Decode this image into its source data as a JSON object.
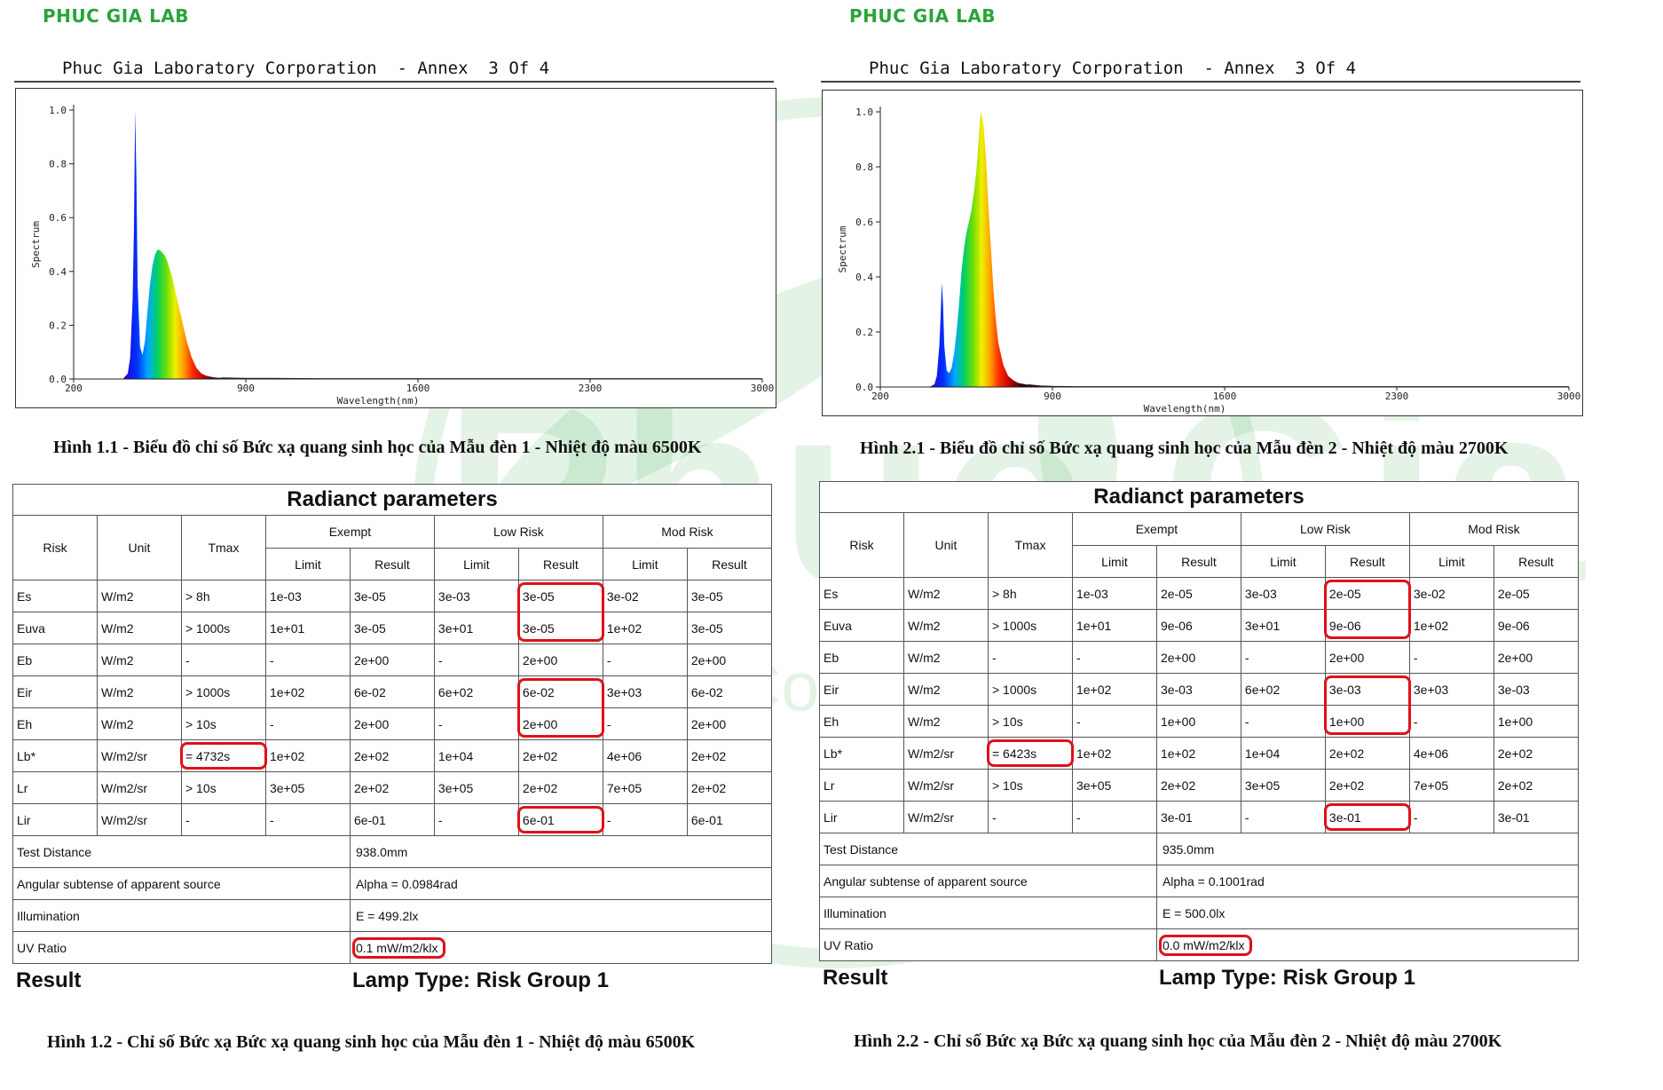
{
  "panels": [
    {
      "brand": "PHUC GIA LAB",
      "report_title": "Phuc Gia Laboratory Corporation  - Annex  3 Of 4",
      "chart_caption": "Hình 1.1 - Biểu đồ chỉ số Bức xạ quang sinh học của Mẫu đèn 1 - Nhiệt độ màu 6500K",
      "table_title": "Radianct parameters",
      "headers": {
        "risk": "Risk",
        "unit": "Unit",
        "tmax": "Tmax",
        "exempt": "Exempt",
        "low_risk": "Low Risk",
        "mod_risk": "Mod Risk",
        "limit": "Limit",
        "result": "Result"
      },
      "rows": [
        {
          "risk": "Es",
          "unit": "W/m2",
          "tmax": "> 8h",
          "ex_limit": "1e-03",
          "ex_result": "3e-05",
          "lr_limit": "3e-03",
          "lr_result": "3e-05",
          "mr_limit": "3e-02",
          "mr_result": "3e-05"
        },
        {
          "risk": "Euva",
          "unit": "W/m2",
          "tmax": "> 1000s",
          "ex_limit": "1e+01",
          "ex_result": "3e-05",
          "lr_limit": "3e+01",
          "lr_result": "3e-05",
          "mr_limit": "1e+02",
          "mr_result": "3e-05"
        },
        {
          "risk": "Eb",
          "unit": "W/m2",
          "tmax": "-",
          "ex_limit": "-",
          "ex_result": "2e+00",
          "lr_limit": "-",
          "lr_result": "2e+00",
          "mr_limit": "-",
          "mr_result": "2e+00"
        },
        {
          "risk": "Eir",
          "unit": "W/m2",
          "tmax": "> 1000s",
          "ex_limit": "1e+02",
          "ex_result": "6e-02",
          "lr_limit": "6e+02",
          "lr_result": "6e-02",
          "mr_limit": "3e+03",
          "mr_result": "6e-02"
        },
        {
          "risk": "Eh",
          "unit": "W/m2",
          "tmax": "> 10s",
          "ex_limit": "-",
          "ex_result": "2e+00",
          "lr_limit": "-",
          "lr_result": "2e+00",
          "mr_limit": "-",
          "mr_result": "2e+00"
        },
        {
          "risk": "Lb*",
          "unit": "W/m2/sr",
          "tmax": "= 4732s",
          "ex_limit": "1e+02",
          "ex_result": "2e+02",
          "lr_limit": "1e+04",
          "lr_result": "2e+02",
          "mr_limit": "4e+06",
          "mr_result": "2e+02"
        },
        {
          "risk": "Lr",
          "unit": "W/m2/sr",
          "tmax": "> 10s",
          "ex_limit": "3e+05",
          "ex_result": "2e+02",
          "lr_limit": "3e+05",
          "lr_result": "2e+02",
          "mr_limit": "7e+05",
          "mr_result": "2e+02"
        },
        {
          "risk": "Lir",
          "unit": "W/m2/sr",
          "tmax": "-",
          "ex_limit": "-",
          "ex_result": "6e-01",
          "lr_limit": "-",
          "lr_result": "6e-01",
          "mr_limit": "-",
          "mr_result": "6e-01"
        }
      ],
      "info": [
        {
          "label": "Test Distance",
          "value": "938.0mm"
        },
        {
          "label": "Angular subtense of apparent source",
          "value": "Alpha = 0.0984rad"
        },
        {
          "label": "Illumination",
          "value": "E = 499.2lx"
        },
        {
          "label": "UV Ratio",
          "value": "0.1 mW/m2/klx"
        }
      ],
      "result_label": "Result",
      "result_value": "Lamp Type: Risk Group 1",
      "table_caption": "Hình 1.2 - Chỉ số Bức xạ Bức xạ quang sinh học của Mẫu đèn 1 - Nhiệt độ màu 6500K"
    },
    {
      "brand": "PHUC GIA LAB",
      "report_title": "Phuc Gia Laboratory Corporation  - Annex  3 Of 4",
      "chart_caption": "Hình 2.1 - Biểu đồ chỉ số Bức xạ quang sinh học của Mẫu đèn 2 - Nhiệt độ màu 2700K",
      "table_title": "Radianct parameters",
      "headers": {
        "risk": "Risk",
        "unit": "Unit",
        "tmax": "Tmax",
        "exempt": "Exempt",
        "low_risk": "Low Risk",
        "mod_risk": "Mod Risk",
        "limit": "Limit",
        "result": "Result"
      },
      "rows": [
        {
          "risk": "Es",
          "unit": "W/m2",
          "tmax": "> 8h",
          "ex_limit": "1e-03",
          "ex_result": "2e-05",
          "lr_limit": "3e-03",
          "lr_result": "2e-05",
          "mr_limit": "3e-02",
          "mr_result": "2e-05"
        },
        {
          "risk": "Euva",
          "unit": "W/m2",
          "tmax": "> 1000s",
          "ex_limit": "1e+01",
          "ex_result": "9e-06",
          "lr_limit": "3e+01",
          "lr_result": "9e-06",
          "mr_limit": "1e+02",
          "mr_result": "9e-06"
        },
        {
          "risk": "Eb",
          "unit": "W/m2",
          "tmax": "-",
          "ex_limit": "-",
          "ex_result": "2e+00",
          "lr_limit": "-",
          "lr_result": "2e+00",
          "mr_limit": "-",
          "mr_result": "2e+00"
        },
        {
          "risk": "Eir",
          "unit": "W/m2",
          "tmax": "> 1000s",
          "ex_limit": "1e+02",
          "ex_result": "3e-03",
          "lr_limit": "6e+02",
          "lr_result": "3e-03",
          "mr_limit": "3e+03",
          "mr_result": "3e-03"
        },
        {
          "risk": "Eh",
          "unit": "W/m2",
          "tmax": "> 10s",
          "ex_limit": "-",
          "ex_result": "1e+00",
          "lr_limit": "-",
          "lr_result": "1e+00",
          "mr_limit": "-",
          "mr_result": "1e+00"
        },
        {
          "risk": "Lb*",
          "unit": "W/m2/sr",
          "tmax": "= 6423s",
          "ex_limit": "1e+02",
          "ex_result": "1e+02",
          "lr_limit": "1e+04",
          "lr_result": "2e+02",
          "mr_limit": "4e+06",
          "mr_result": "2e+02"
        },
        {
          "risk": "Lr",
          "unit": "W/m2/sr",
          "tmax": "> 10s",
          "ex_limit": "3e+05",
          "ex_result": "2e+02",
          "lr_limit": "3e+05",
          "lr_result": "2e+02",
          "mr_limit": "7e+05",
          "mr_result": "2e+02"
        },
        {
          "risk": "Lir",
          "unit": "W/m2/sr",
          "tmax": "-",
          "ex_limit": "-",
          "ex_result": "3e-01",
          "lr_limit": "-",
          "lr_result": "3e-01",
          "mr_limit": "-",
          "mr_result": "3e-01"
        }
      ],
      "info": [
        {
          "label": "Test Distance",
          "value": "935.0mm"
        },
        {
          "label": "Angular subtense of apparent source",
          "value": "Alpha = 0.1001rad"
        },
        {
          "label": "Illumination",
          "value": "E = 500.0lx"
        },
        {
          "label": "UV Ratio",
          "value": "0.0 mW/m2/klx"
        }
      ],
      "result_label": "Result",
      "result_value": "Lamp Type: Risk Group 1",
      "table_caption": "Hình 2.2 - Chỉ số Bức xạ Bức xạ quang sinh học của Mẫu đèn 2 - Nhiệt độ màu 2700K"
    }
  ],
  "highlighted_cells": [
    [
      "tmax-5",
      "lr_result-0-1",
      "lr_result-3-4",
      "lr_result-7",
      "uv"
    ],
    [
      "tmax-5",
      "lr_result-0-1",
      "lr_result-3-4",
      "lr_result-7",
      "uv"
    ]
  ],
  "watermark": {
    "text_main": "Phuc Gia",
    "text_sub": "For A Comfortable Life",
    "mark": "®",
    "color": "#2aa33a"
  },
  "chart_data": [
    {
      "type": "area",
      "title": "",
      "xlabel": "Wavelength(nm)",
      "ylabel": "Spectrum",
      "xlim": [
        200,
        3000
      ],
      "ylim": [
        0,
        1.0
      ],
      "x_ticks": [
        "200",
        "900",
        "1600",
        "2300",
        "3000"
      ],
      "y_ticks": [
        "0.0",
        "0.2",
        "0.4",
        "0.6",
        "0.8",
        "1.0"
      ],
      "grid": false,
      "fill": "visible-spectrum gradient",
      "x": [
        380,
        400,
        420,
        430,
        440,
        445,
        450,
        455,
        460,
        470,
        480,
        490,
        500,
        510,
        520,
        530,
        540,
        550,
        560,
        570,
        580,
        590,
        600,
        620,
        640,
        660,
        680,
        700,
        720,
        740,
        760,
        780,
        800,
        850,
        900,
        1000,
        1200,
        1600,
        2300,
        3000
      ],
      "y": [
        0.0,
        0.0,
        0.02,
        0.08,
        0.3,
        0.55,
        1.0,
        0.75,
        0.35,
        0.12,
        0.09,
        0.14,
        0.25,
        0.35,
        0.42,
        0.46,
        0.48,
        0.48,
        0.47,
        0.46,
        0.44,
        0.41,
        0.38,
        0.3,
        0.22,
        0.14,
        0.08,
        0.04,
        0.02,
        0.012,
        0.008,
        0.005,
        0.004,
        0.003,
        0.002,
        0.002,
        0.001,
        0.001,
        0.001,
        0.001
      ]
    },
    {
      "type": "area",
      "title": "",
      "xlabel": "Wavelength(nm)",
      "ylabel": "Spectrum",
      "xlim": [
        200,
        3000
      ],
      "ylim": [
        0,
        1.0
      ],
      "x_ticks": [
        "200",
        "900",
        "1600",
        "2300",
        "3000"
      ],
      "y_ticks": [
        "0.0",
        "0.2",
        "0.4",
        "0.6",
        "0.8",
        "1.0"
      ],
      "grid": false,
      "fill": "visible-spectrum gradient",
      "x": [
        380,
        400,
        420,
        430,
        440,
        445,
        450,
        455,
        460,
        470,
        480,
        490,
        500,
        510,
        520,
        530,
        540,
        550,
        560,
        570,
        580,
        590,
        600,
        605,
        610,
        620,
        630,
        640,
        650,
        660,
        670,
        680,
        700,
        720,
        740,
        760,
        800,
        850,
        900,
        1000,
        1600,
        2300,
        3000
      ],
      "y": [
        0.0,
        0.0,
        0.01,
        0.04,
        0.15,
        0.25,
        0.38,
        0.3,
        0.15,
        0.06,
        0.05,
        0.07,
        0.12,
        0.2,
        0.3,
        0.42,
        0.5,
        0.56,
        0.6,
        0.64,
        0.7,
        0.78,
        0.9,
        0.97,
        1.0,
        0.95,
        0.82,
        0.65,
        0.5,
        0.35,
        0.24,
        0.16,
        0.08,
        0.04,
        0.025,
        0.015,
        0.008,
        0.004,
        0.002,
        0.001,
        0.001,
        0.001,
        0.001
      ]
    }
  ]
}
